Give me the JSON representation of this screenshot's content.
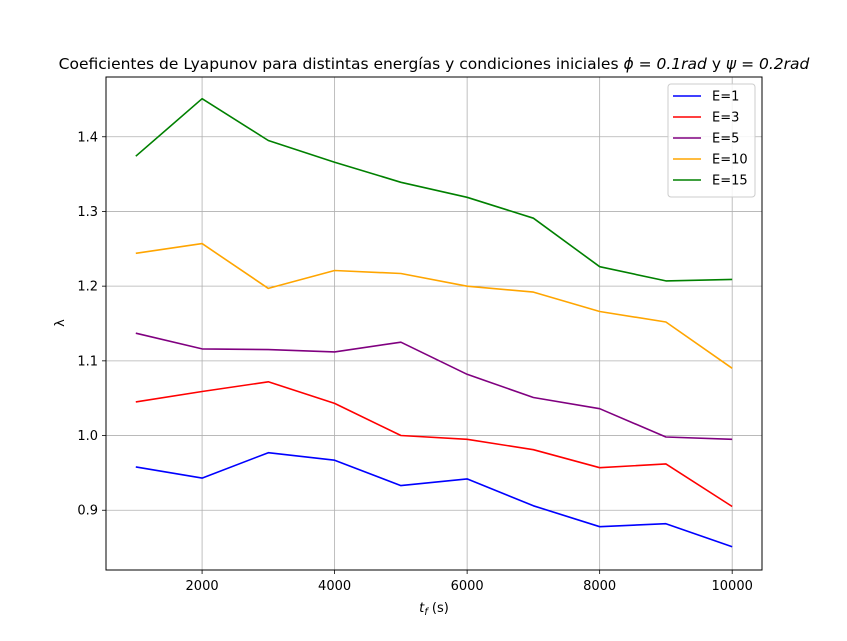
{
  "chart_data": {
    "type": "line",
    "title_prefix": "Coeficientes de Lyapunov para distintas energías y condiciones iniciales ",
    "title_phi": "ϕ = 0.1",
    "title_rad": "rad",
    "title_and": " y ",
    "title_psi": "ψ = 0.2",
    "title_rad2": "rad",
    "xlabel_sym": "t",
    "xlabel_sub": "f",
    "xlabel_unit": " (s)",
    "ylabel": "λ",
    "xlim": [
      550,
      10450
    ],
    "ylim": [
      0.82,
      1.48
    ],
    "xticks": [
      2000,
      4000,
      6000,
      8000,
      10000
    ],
    "yticks": [
      0.9,
      1.0,
      1.1,
      1.2,
      1.3,
      1.4
    ],
    "grid": true,
    "legend_position": "top-right",
    "x": [
      1000,
      2000,
      3000,
      4000,
      5000,
      6000,
      7000,
      8000,
      9000,
      10000
    ],
    "series": [
      {
        "name": "E=1",
        "color": "#0000ff",
        "values": [
          0.958,
          0.943,
          0.977,
          0.967,
          0.933,
          0.942,
          0.906,
          0.878,
          0.882,
          0.851
        ]
      },
      {
        "name": "E=3",
        "color": "#ff0000",
        "values": [
          1.045,
          1.059,
          1.072,
          1.043,
          1.0,
          0.995,
          0.981,
          0.957,
          0.962,
          0.905
        ]
      },
      {
        "name": "E=5",
        "color": "#800080",
        "values": [
          1.137,
          1.116,
          1.115,
          1.112,
          1.125,
          1.082,
          1.051,
          1.036,
          0.998,
          0.995
        ]
      },
      {
        "name": "E=10",
        "color": "#ffa500",
        "values": [
          1.244,
          1.257,
          1.197,
          1.221,
          1.217,
          1.2,
          1.192,
          1.166,
          1.152,
          1.09
        ]
      },
      {
        "name": "E=15",
        "color": "#008000",
        "values": [
          1.374,
          1.451,
          1.395,
          1.366,
          1.339,
          1.319,
          1.291,
          1.226,
          1.207,
          1.209
        ]
      }
    ]
  }
}
